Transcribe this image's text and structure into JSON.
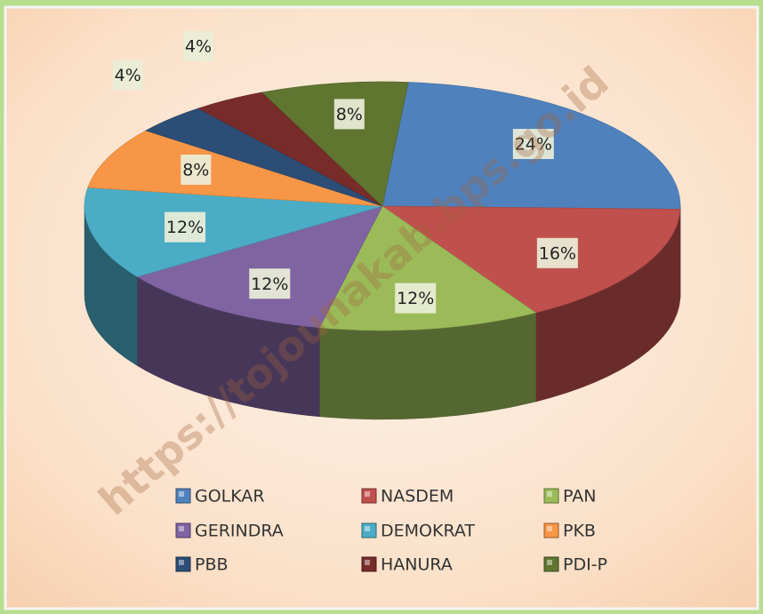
{
  "chart_data": {
    "type": "pie",
    "categories": [
      "GOLKAR",
      "NASDEM",
      "PAN",
      "GERINDRA",
      "DEMOKRAT",
      "PKB",
      "PBB",
      "HANURA",
      "PDI-P"
    ],
    "values": [
      24,
      16,
      12,
      12,
      12,
      8,
      4,
      4,
      8
    ],
    "value_labels": [
      "24%",
      "16%",
      "12%",
      "12%",
      "12%",
      "8%",
      "4%",
      "4%",
      "8%"
    ],
    "colors": [
      "#4f81bd",
      "#c0504d",
      "#9bbb59",
      "#8064a2",
      "#4bacc6",
      "#f79646",
      "#2c4d75",
      "#772c2a",
      "#5f7530"
    ],
    "legend": "bottom",
    "watermark": "https://tojounakab.bps.go.id"
  }
}
